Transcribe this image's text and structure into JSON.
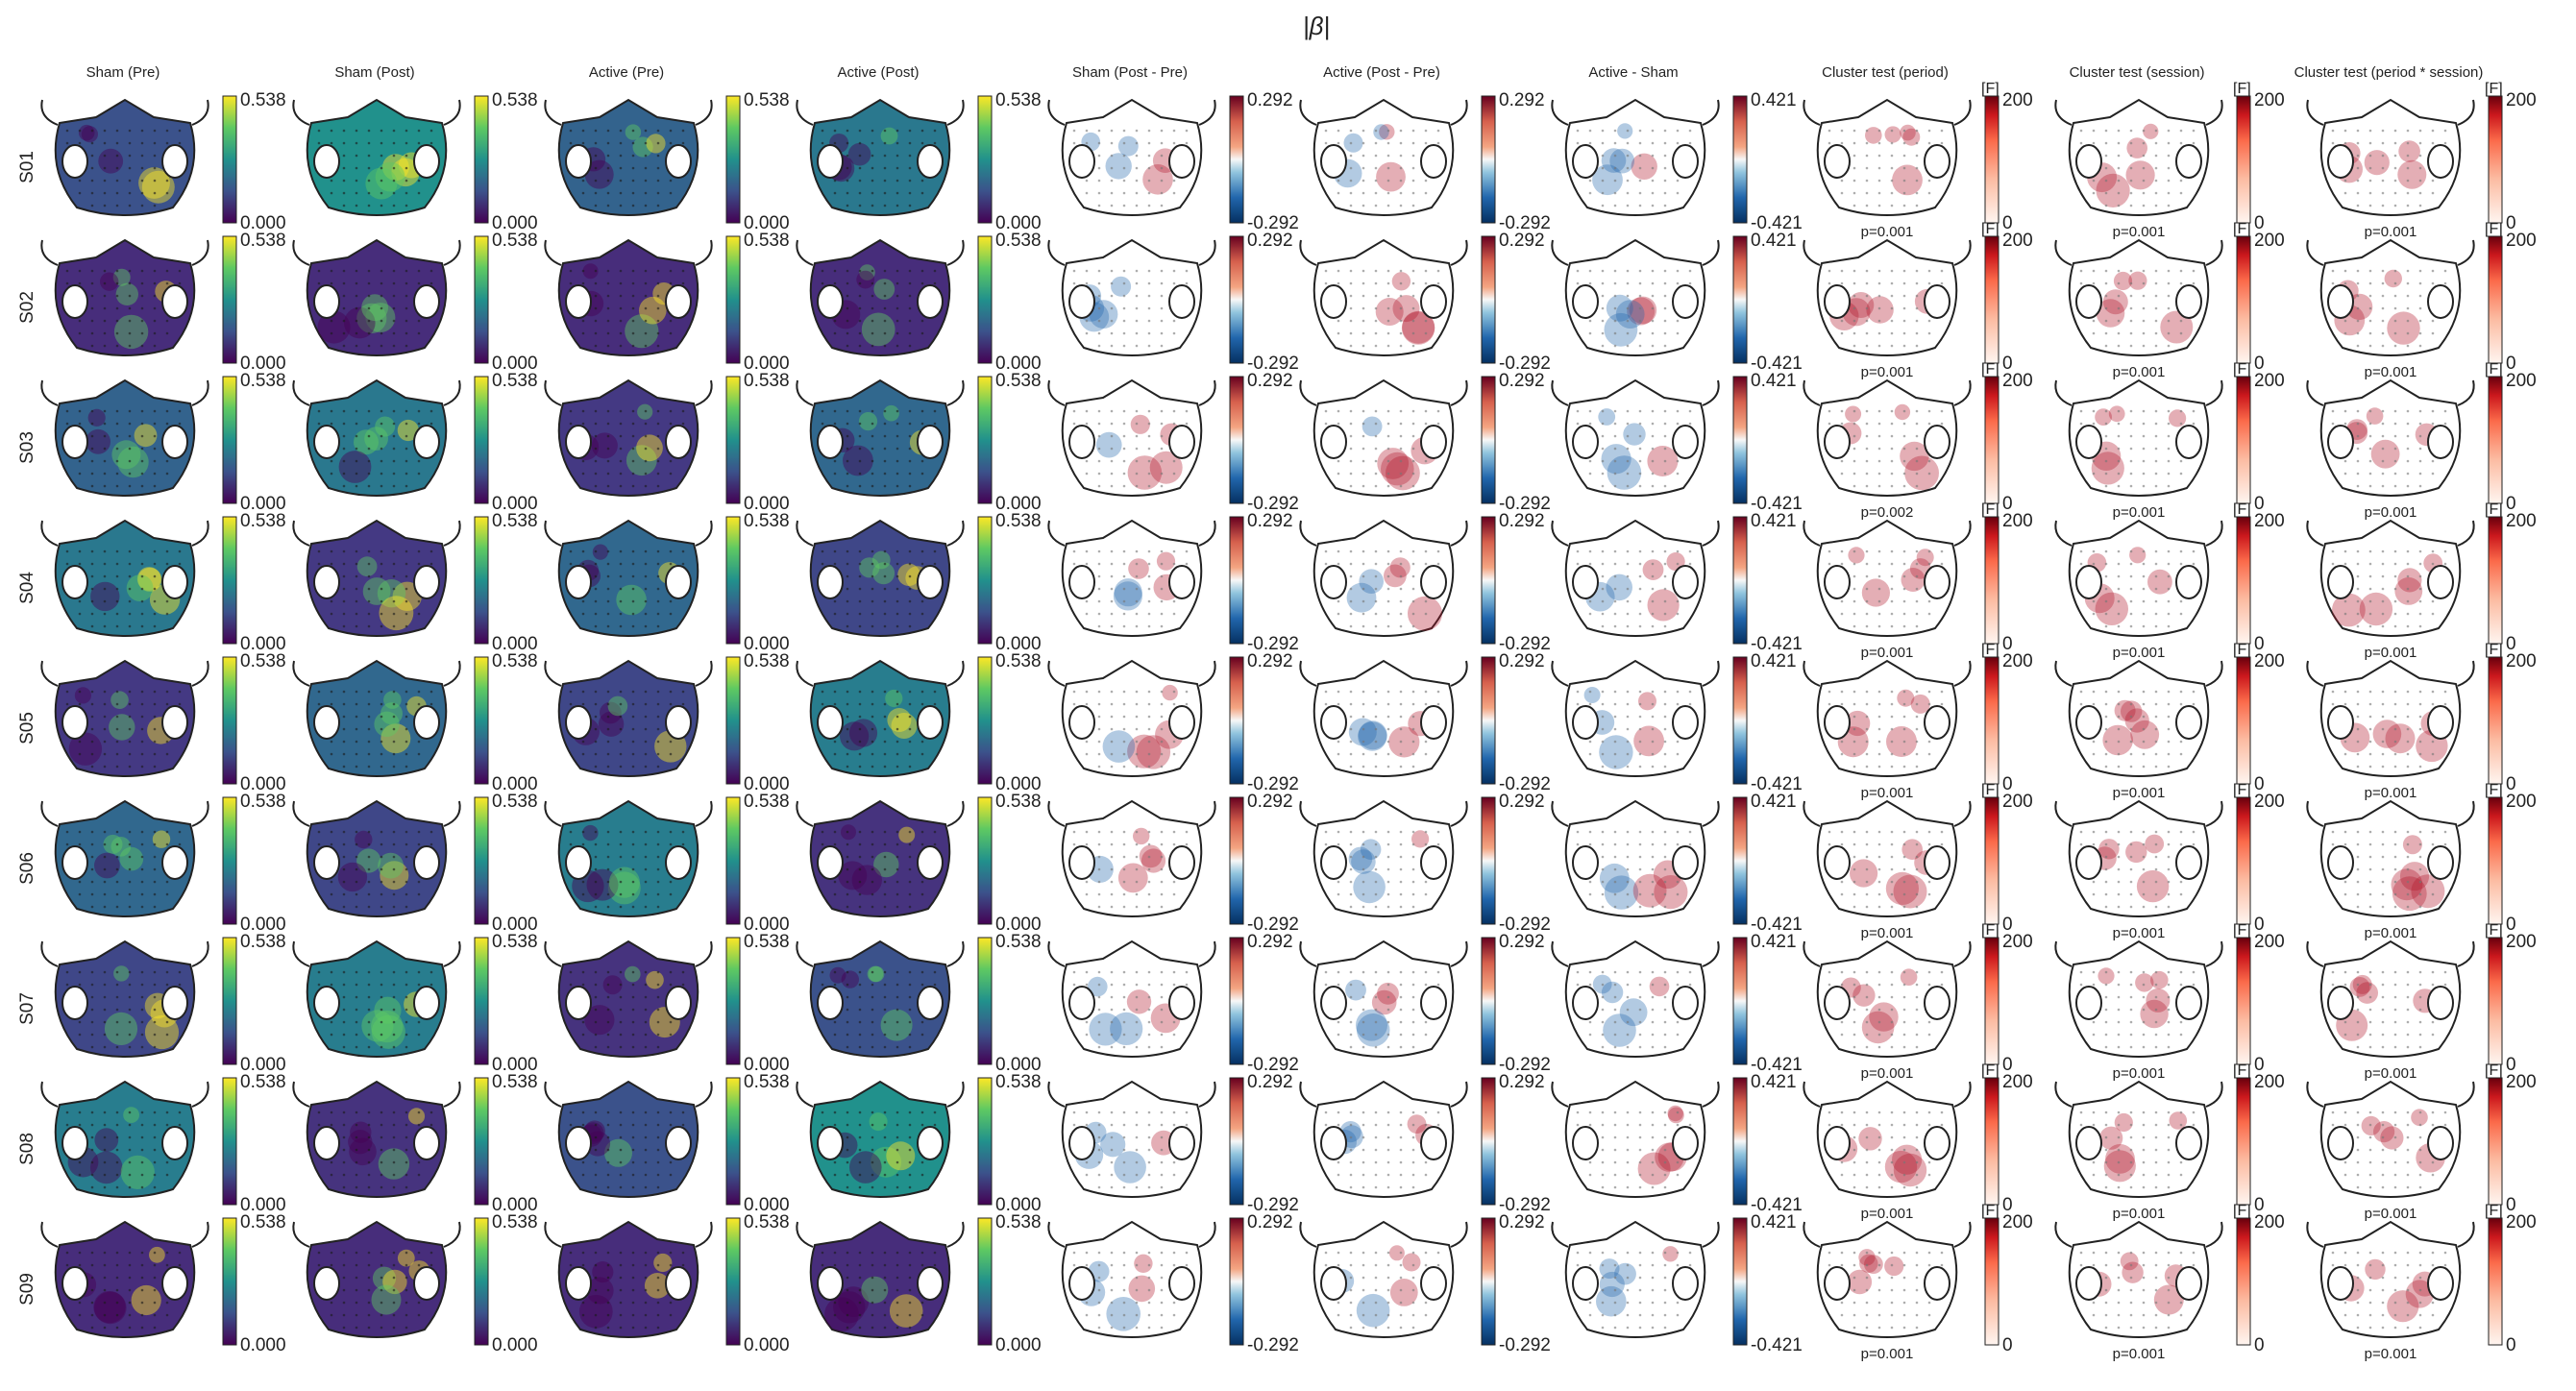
{
  "figure": {
    "title": "|β|",
    "columns": [
      {
        "label": "Sham (Pre)",
        "kind": "beta"
      },
      {
        "label": "Sham (Post)",
        "kind": "beta"
      },
      {
        "label": "Active (Pre)",
        "kind": "beta"
      },
      {
        "label": "Active (Post)",
        "kind": "beta"
      },
      {
        "label": "Sham (Post - Pre)",
        "kind": "diff"
      },
      {
        "label": "Active (Post - Pre)",
        "kind": "diff"
      },
      {
        "label": "Active - Sham",
        "kind": "diff2"
      },
      {
        "label": "Cluster test (period)",
        "kind": "F"
      },
      {
        "label": "Cluster test (session)",
        "kind": "F"
      },
      {
        "label": "Cluster test (period * session)",
        "kind": "F"
      }
    ],
    "subjects": [
      "S01",
      "S02",
      "S03",
      "S04",
      "S05",
      "S06",
      "S07",
      "S08",
      "S09"
    ],
    "colorbars": {
      "beta": {
        "max": "0.538",
        "min": "0.000",
        "cmap": "viridis"
      },
      "diff": {
        "max": "0.292",
        "min": "-0.292",
        "cmap": "RdBu_r"
      },
      "diff2": {
        "max": "0.421",
        "min": "-0.421",
        "cmap": "RdBu_r"
      },
      "F": {
        "max": "200",
        "min": "0",
        "unit": "[F]",
        "cmap": "Reds"
      }
    },
    "cluster_p_values": {
      "period": [
        "p=0.001",
        "p=0.001",
        "p=0.002",
        "p=0.001",
        "p=0.001",
        "p=0.001",
        "p=0.001",
        "p=0.001",
        "p=0.001"
      ],
      "session": [
        "p=0.001",
        "p=0.001",
        "p=0.001",
        "p=0.001",
        "p=0.001",
        "p=0.001",
        "p=0.001",
        "p=0.001",
        "p=0.001"
      ],
      "interaction": [
        "p=0.001",
        "p=0.001",
        "p=0.001",
        "p=0.001",
        "p=0.001",
        "p=0.001",
        "p=0.001",
        "p=0.001",
        "p=0.001"
      ]
    },
    "colors": {
      "viridis_low": "#440154",
      "viridis_mid": "#21918c",
      "viridis_high": "#fde725",
      "red": "#b2182b",
      "blue": "#2166ac",
      "outline": "#222222"
    }
  }
}
